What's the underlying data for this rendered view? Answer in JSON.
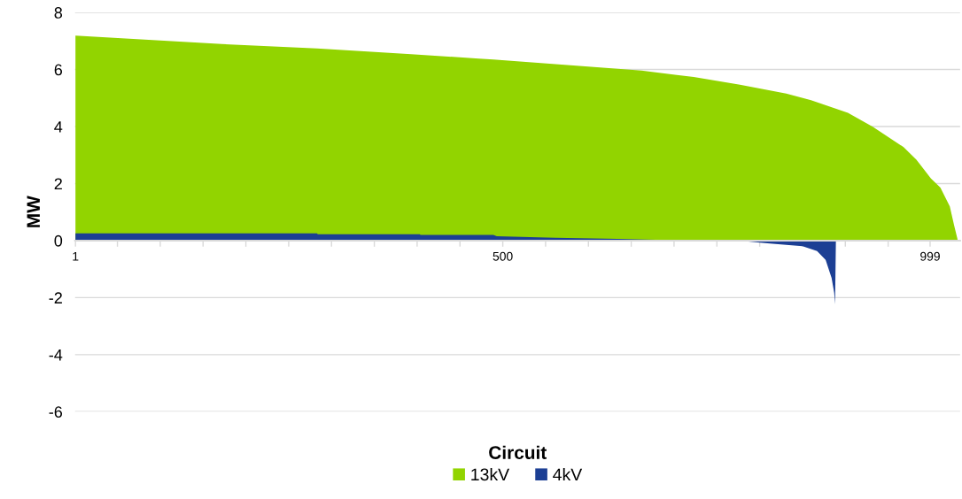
{
  "chart_data": {
    "type": "area",
    "xlabel": "Circuit",
    "ylabel": "MW",
    "xlim": [
      0.5,
      1034
    ],
    "xticks": [
      1,
      {
        "value": 50,
        "label": null
      },
      {
        "value": 100,
        "label": null
      },
      {
        "value": 150,
        "label": null
      },
      {
        "value": 200,
        "label": null
      },
      {
        "value": 250,
        "label": null
      },
      {
        "value": 300,
        "label": null
      },
      {
        "value": 350,
        "label": null
      },
      {
        "value": 400,
        "label": null
      },
      {
        "value": 450,
        "label": null
      },
      500,
      {
        "value": 550,
        "label": null
      },
      {
        "value": 600,
        "label": null
      },
      {
        "value": 650,
        "label": null
      },
      {
        "value": 700,
        "label": null
      },
      {
        "value": 750,
        "label": null
      },
      {
        "value": 800,
        "label": null
      },
      {
        "value": 850,
        "label": null
      },
      {
        "value": 900,
        "label": null
      },
      {
        "value": 950,
        "label": null
      },
      999
    ],
    "ylim": [
      -6,
      8
    ],
    "yticks": [
      -6,
      -4,
      -2,
      0,
      2,
      4,
      6,
      8
    ],
    "grid": "y",
    "legend": "bottom",
    "series": [
      {
        "name": "13kV",
        "color": "#92d400",
        "x": [
          1,
          172,
          283,
          393,
          472,
          489,
          579,
          662,
          723,
          777,
          831,
          860,
          903,
          932,
          968,
          983,
          1000,
          1011,
          1022,
          1027,
          1031
        ],
        "values": [
          7.19,
          6.89,
          6.74,
          6.54,
          6.38,
          6.35,
          6.15,
          5.96,
          5.74,
          5.47,
          5.16,
          4.92,
          4.48,
          3.99,
          3.28,
          2.84,
          2.18,
          1.86,
          1.2,
          0.54,
          0.05
        ]
      },
      {
        "name": "4kV",
        "color": "#1c3f94",
        "x": [
          1,
          283,
          284,
          403,
          404,
          489,
          493,
          561,
          634,
          679,
          680,
          781,
          812,
          850,
          867,
          877,
          884,
          887,
          888,
          889
        ],
        "values": [
          0.25,
          0.25,
          0.22,
          0.22,
          0.2,
          0.2,
          0.15,
          0.1,
          0.06,
          0.03,
          0,
          -0.02,
          -0.1,
          -0.2,
          -0.37,
          -0.68,
          -1.31,
          -1.83,
          -2.24,
          0
        ]
      }
    ]
  }
}
